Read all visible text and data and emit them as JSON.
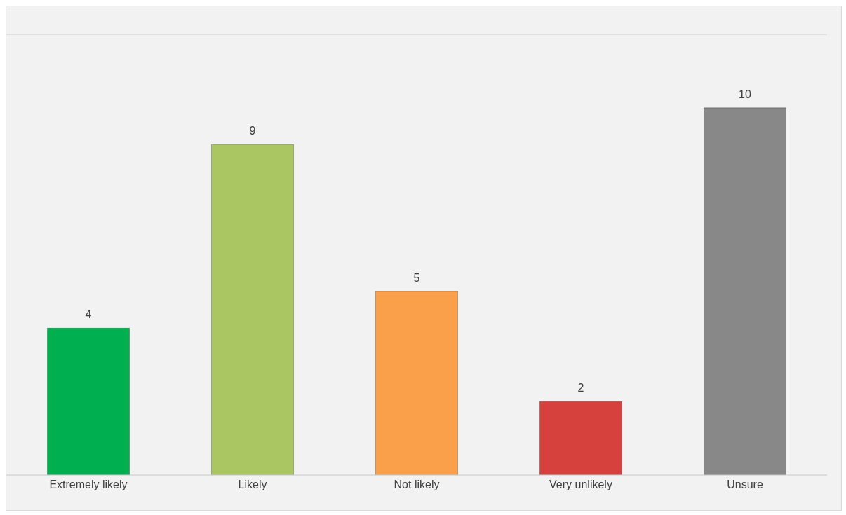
{
  "chart_data": {
    "type": "bar",
    "categories": [
      "Extremely likely",
      "Likely",
      "Not likely",
      "Very unlikely",
      "Unsure"
    ],
    "values": [
      4,
      9,
      5,
      2,
      10
    ],
    "colors": [
      "#00b050",
      "#a9c662",
      "#fba04a",
      "#d6403d",
      "#888888"
    ],
    "ylim": [
      0,
      12
    ],
    "tick_labels": "x",
    "grid": "y",
    "data_labels": true
  }
}
